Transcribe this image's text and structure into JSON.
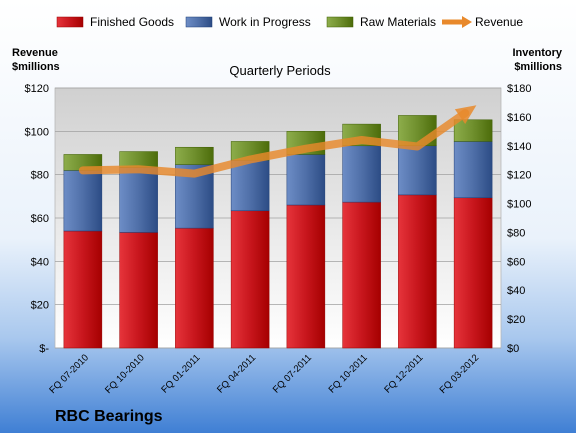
{
  "chart_data": {
    "type": "bar",
    "stacked": true,
    "company": "RBC Bearings",
    "subtitle": "Quarterly Periods",
    "left_axis_title": [
      "Revenue",
      "$millions"
    ],
    "right_axis_title": [
      "Inventory",
      "$millions"
    ],
    "categories": [
      "FQ 07-2010",
      "FQ 10-2010",
      "FQ 01-2011",
      "FQ 04-2011",
      "FQ 07-2011",
      "FQ 10-2011",
      "FQ 12-2011",
      "FQ 03-2012"
    ],
    "y_left": {
      "min": 0,
      "max": 120,
      "step": 20,
      "format": "dollar",
      "tick_labels": [
        "$-",
        "$20",
        "$40",
        "$60",
        "$80",
        "$100",
        "$120"
      ]
    },
    "y_right": {
      "min": 0,
      "max": 180,
      "step": 20,
      "format": "dollar",
      "tick_labels": [
        "$0",
        "$20",
        "$40",
        "$60",
        "$80",
        "$100",
        "$120",
        "$140",
        "$160",
        "$180"
      ]
    },
    "series": [
      {
        "name": "Finished Goods",
        "axis": "right",
        "kind": "bar",
        "color": "#c8161d",
        "values": [
          81,
          80,
          83,
          95,
          99,
          101,
          106,
          104
        ]
      },
      {
        "name": "Work in Progress",
        "axis": "right",
        "kind": "bar",
        "color": "#4f6fa8",
        "values": [
          42,
          45,
          44,
          35,
          35,
          39,
          34,
          39
        ]
      },
      {
        "name": "Raw Materials",
        "axis": "right",
        "kind": "bar",
        "color": "#6f8f2d",
        "values": [
          11,
          11,
          12,
          13,
          16,
          15,
          21,
          15
        ]
      },
      {
        "name": "Revenue",
        "axis": "left",
        "kind": "line",
        "color": "#e8892b",
        "values": [
          82,
          82.5,
          80.5,
          87,
          92,
          96,
          93,
          111
        ]
      }
    ],
    "legend_position": "top",
    "grid": true
  }
}
